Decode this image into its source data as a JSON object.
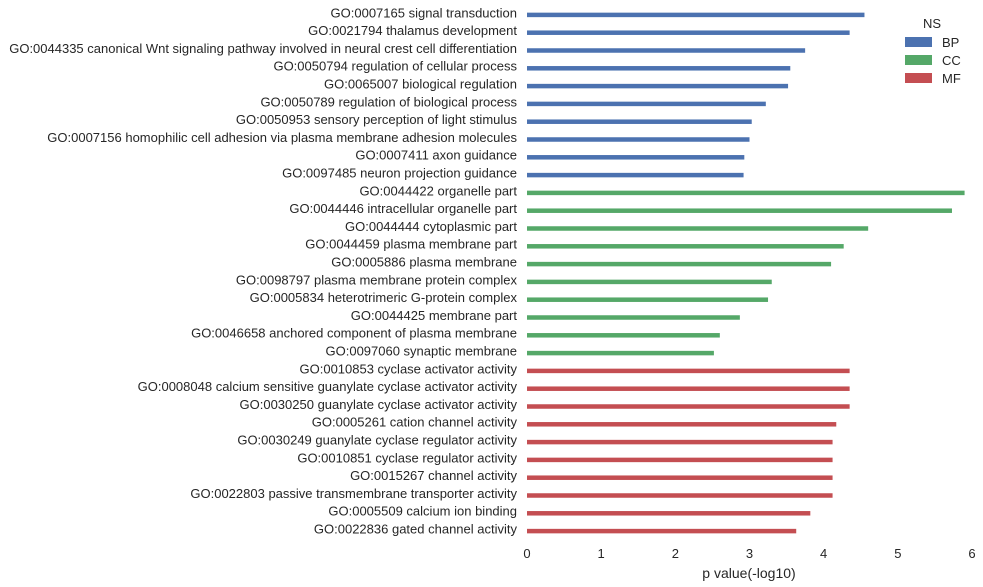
{
  "chart_data": {
    "type": "bar",
    "orientation": "horizontal",
    "xlabel": "p value(-log10)",
    "ylabel": "",
    "xlim": [
      0,
      6
    ],
    "xticks": [
      0,
      1,
      2,
      3,
      4,
      5,
      6
    ],
    "grid": false,
    "legend": {
      "title": "NS",
      "placement": "top-right",
      "entries": [
        {
          "name": "BP",
          "color": "#4c72b0"
        },
        {
          "name": "CC",
          "color": "#55a868"
        },
        {
          "name": "MF",
          "color": "#c44e52"
        }
      ]
    },
    "bars": [
      {
        "label": "GO:0007165 signal transduction",
        "value": 4.55,
        "group": "BP"
      },
      {
        "label": "GO:0021794 thalamus development",
        "value": 4.35,
        "group": "BP"
      },
      {
        "label": "GO:0044335 canonical Wnt signaling pathway involved in neural crest cell differentiation",
        "value": 3.75,
        "group": "BP"
      },
      {
        "label": "GO:0050794 regulation of cellular process",
        "value": 3.55,
        "group": "BP"
      },
      {
        "label": "GO:0065007 biological regulation",
        "value": 3.52,
        "group": "BP"
      },
      {
        "label": "GO:0050789 regulation of biological process",
        "value": 3.22,
        "group": "BP"
      },
      {
        "label": "GO:0050953 sensory perception of light stimulus",
        "value": 3.03,
        "group": "BP"
      },
      {
        "label": "GO:0007156 homophilic cell adhesion via plasma membrane adhesion molecules",
        "value": 3.0,
        "group": "BP"
      },
      {
        "label": "GO:0007411 axon guidance",
        "value": 2.93,
        "group": "BP"
      },
      {
        "label": "GO:0097485 neuron projection guidance",
        "value": 2.92,
        "group": "BP"
      },
      {
        "label": "GO:0044422 organelle part",
        "value": 5.9,
        "group": "CC"
      },
      {
        "label": "GO:0044446 intracellular organelle part",
        "value": 5.73,
        "group": "CC"
      },
      {
        "label": "GO:0044444 cytoplasmic part",
        "value": 4.6,
        "group": "CC"
      },
      {
        "label": "GO:0044459 plasma membrane part",
        "value": 4.27,
        "group": "CC"
      },
      {
        "label": "GO:0005886 plasma membrane",
        "value": 4.1,
        "group": "CC"
      },
      {
        "label": "GO:0098797 plasma membrane protein complex",
        "value": 3.3,
        "group": "CC"
      },
      {
        "label": "GO:0005834 heterotrimeric G-protein complex",
        "value": 3.25,
        "group": "CC"
      },
      {
        "label": "GO:0044425 membrane part",
        "value": 2.87,
        "group": "CC"
      },
      {
        "label": "GO:0046658 anchored component of plasma membrane",
        "value": 2.6,
        "group": "CC"
      },
      {
        "label": "GO:0097060 synaptic membrane",
        "value": 2.52,
        "group": "CC"
      },
      {
        "label": "GO:0010853 cyclase activator activity",
        "value": 4.35,
        "group": "MF"
      },
      {
        "label": "GO:0008048 calcium sensitive guanylate cyclase activator activity",
        "value": 4.35,
        "group": "MF"
      },
      {
        "label": "GO:0030250 guanylate cyclase activator activity",
        "value": 4.35,
        "group": "MF"
      },
      {
        "label": "GO:0005261 cation channel activity",
        "value": 4.17,
        "group": "MF"
      },
      {
        "label": "GO:0030249 guanylate cyclase regulator activity",
        "value": 4.12,
        "group": "MF"
      },
      {
        "label": "GO:0010851 cyclase regulator activity",
        "value": 4.12,
        "group": "MF"
      },
      {
        "label": "GO:0015267 channel activity",
        "value": 4.12,
        "group": "MF"
      },
      {
        "label": "GO:0022803 passive transmembrane transporter activity",
        "value": 4.12,
        "group": "MF"
      },
      {
        "label": "GO:0005509 calcium ion binding",
        "value": 3.82,
        "group": "MF"
      },
      {
        "label": "GO:0022836 gated channel activity",
        "value": 3.63,
        "group": "MF"
      }
    ]
  }
}
